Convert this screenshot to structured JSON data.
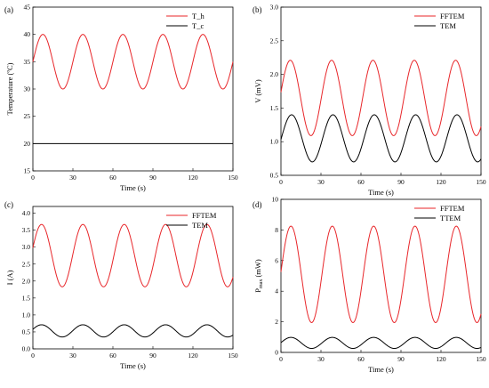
{
  "chart_data": [
    {
      "panel": "(a)",
      "type": "line",
      "xlabel": "Time (s)",
      "ylabel": "Temperature (ºC)",
      "xlim": [
        0,
        150
      ],
      "ylim": [
        15,
        45
      ],
      "xticks": [
        0,
        30,
        60,
        90,
        120,
        150
      ],
      "yticks": [
        15,
        20,
        25,
        30,
        35,
        40,
        45
      ],
      "legend": "top-right",
      "series": [
        {
          "name": "T_h",
          "color": "#e8262a",
          "mean": 35,
          "amp": 5,
          "period": 30,
          "phase_x": 7.5,
          "x_end": 150
        },
        {
          "name": "T_c",
          "color": "#000000",
          "mean": 20,
          "amp": 0,
          "period": 30,
          "phase_x": 7.5,
          "x_end": 150
        }
      ]
    },
    {
      "panel": "(b)",
      "type": "line",
      "xlabel": "Time (s)",
      "ylabel": "V (mV)",
      "xlim": [
        0,
        150
      ],
      "ylim": [
        0.5,
        3.0
      ],
      "xticks": [
        0,
        30,
        60,
        90,
        120,
        150
      ],
      "yticks": [
        "0.5",
        "1.0",
        "1.5",
        "2.0",
        "2.5",
        "3.0"
      ],
      "legend": "top-right",
      "series": [
        {
          "name": "FFTEM",
          "color": "#e8262a",
          "mean": 1.65,
          "amp": 0.56,
          "period": 31,
          "phase_x": 7,
          "x_end": 150
        },
        {
          "name": "TEM",
          "color": "#000000",
          "mean": 1.05,
          "amp": 0.35,
          "period": 31,
          "phase_x": 8,
          "x_end": 150
        }
      ]
    },
    {
      "panel": "(c)",
      "type": "line",
      "xlabel": "Time (s)",
      "ylabel": "I (A)",
      "xlim": [
        0,
        150
      ],
      "ylim": [
        0.0,
        4.2
      ],
      "xticks": [
        0,
        30,
        60,
        90,
        120,
        150
      ],
      "yticks": [
        "0.0",
        "0.5",
        "1.0",
        "1.5",
        "2.0",
        "2.5",
        "3.0",
        "3.5",
        "4.0"
      ],
      "legend": "top-right",
      "series": [
        {
          "name": "FFTEM",
          "color": "#e8262a",
          "mean": 2.75,
          "amp": 0.92,
          "period": 31,
          "phase_x": 6.5,
          "x_end": 150
        },
        {
          "name": "TEM",
          "color": "#000000",
          "mean": 0.53,
          "amp": 0.18,
          "period": 31,
          "phase_x": 6.5,
          "x_end": 150
        }
      ]
    },
    {
      "panel": "(d)",
      "type": "line",
      "xlabel": "Time (s)",
      "ylabel": "P (mW)",
      "ylabel_sub": "max",
      "xlim": [
        0,
        150
      ],
      "ylim": [
        0,
        10
      ],
      "xticks": [
        0,
        30,
        60,
        90,
        120,
        150
      ],
      "yticks": [
        0,
        2,
        4,
        6,
        8,
        10
      ],
      "legend": "top-right",
      "series": [
        {
          "name": "FFTEM",
          "color": "#e8262a",
          "mean": 5.1,
          "amp": 3.15,
          "period": 31,
          "phase_x": 7.5,
          "x_end": 150
        },
        {
          "name": "TTEM",
          "color": "#000000",
          "mean": 0.62,
          "amp": 0.36,
          "period": 31,
          "phase_x": 7.5,
          "x_end": 150
        }
      ]
    }
  ]
}
